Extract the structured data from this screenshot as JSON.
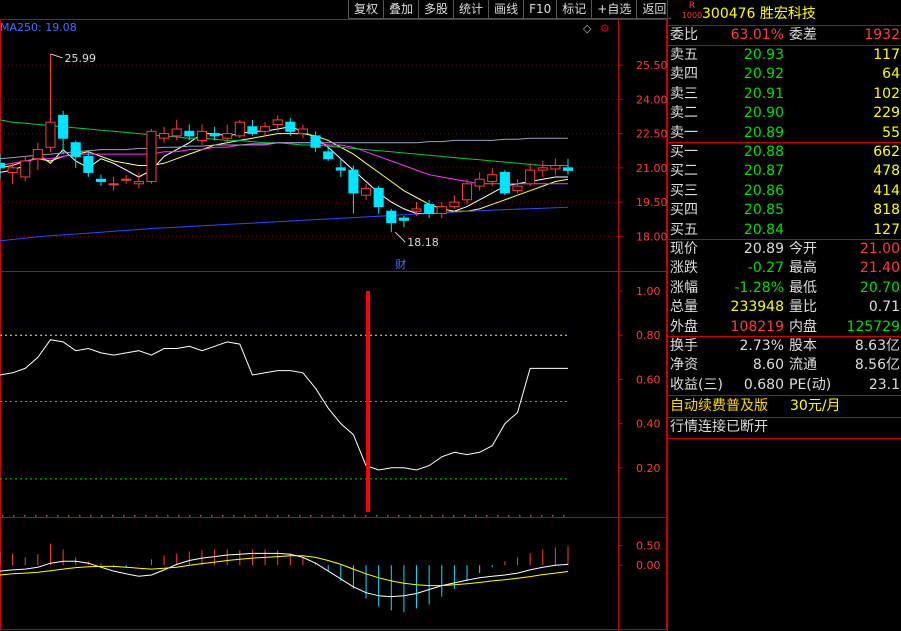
{
  "toolbar": {
    "items": [
      "复权",
      "叠加",
      "多股",
      "统计",
      "画线",
      "F10",
      "标记",
      "+自选",
      "返回"
    ]
  },
  "main_chart": {
    "ma_label": "MA250: 19.08",
    "high_label": "25.99",
    "low_label": "18.18",
    "fin_marker": "财",
    "price_ticks": [
      "25.50",
      "24.00",
      "22.50",
      "21.00",
      "19.50",
      "18.00"
    ]
  },
  "chart_data": [
    {
      "type": "candlestick",
      "ylim": [
        17.4,
        26.6
      ],
      "candles": [
        [
          21.2,
          21.0,
          21.6,
          20.5
        ],
        [
          20.8,
          21.0,
          21.2,
          20.3
        ],
        [
          20.6,
          21.3,
          21.5,
          20.4
        ],
        [
          21.4,
          21.8,
          22.1,
          20.9
        ],
        [
          21.9,
          23.0,
          25.99,
          21.7
        ],
        [
          23.3,
          22.3,
          23.5,
          21.6
        ],
        [
          22.1,
          21.5,
          22.2,
          21.0
        ],
        [
          21.5,
          20.8,
          21.7,
          20.6
        ],
        [
          20.5,
          20.4,
          20.7,
          20.2
        ],
        [
          20.3,
          20.3,
          20.6,
          20.0
        ],
        [
          20.5,
          20.5,
          20.7,
          20.3
        ],
        [
          20.3,
          20.4,
          20.8,
          20.1
        ],
        [
          20.4,
          22.6,
          22.7,
          20.3
        ],
        [
          22.3,
          22.5,
          22.8,
          22.1
        ],
        [
          22.4,
          22.7,
          23.1,
          22.2
        ],
        [
          22.6,
          22.4,
          22.9,
          22.2
        ],
        [
          22.2,
          22.6,
          22.9,
          22.0
        ],
        [
          22.5,
          22.4,
          22.8,
          22.2
        ],
        [
          22.3,
          22.5,
          22.9,
          22.1
        ],
        [
          22.4,
          23.0,
          23.1,
          22.3
        ],
        [
          22.8,
          22.5,
          23.1,
          22.4
        ],
        [
          22.6,
          22.8,
          23.0,
          22.4
        ],
        [
          22.9,
          23.1,
          23.3,
          22.6
        ],
        [
          23.0,
          22.6,
          23.2,
          22.4
        ],
        [
          22.5,
          22.7,
          22.9,
          22.3
        ],
        [
          22.4,
          21.9,
          22.6,
          21.7
        ],
        [
          21.7,
          21.4,
          21.9,
          21.3
        ],
        [
          21.0,
          20.9,
          21.4,
          20.6
        ],
        [
          20.9,
          19.9,
          21.1,
          19.0
        ],
        [
          19.8,
          20.1,
          20.3,
          19.6
        ],
        [
          20.1,
          19.3,
          20.2,
          19.0
        ],
        [
          19.1,
          18.6,
          19.2,
          18.18
        ],
        [
          18.8,
          18.7,
          18.9,
          18.4
        ],
        [
          19.1,
          19.2,
          19.5,
          18.9
        ],
        [
          19.4,
          19.0,
          19.6,
          18.8
        ],
        [
          19.0,
          19.3,
          19.5,
          18.8
        ],
        [
          19.3,
          19.5,
          19.8,
          19.2
        ],
        [
          19.6,
          20.3,
          20.5,
          19.4
        ],
        [
          20.2,
          20.5,
          20.8,
          20.0
        ],
        [
          20.4,
          20.7,
          21.0,
          20.2
        ],
        [
          20.8,
          19.9,
          20.9,
          19.8
        ],
        [
          20.0,
          20.2,
          20.5,
          19.9
        ],
        [
          20.3,
          20.9,
          21.2,
          20.2
        ],
        [
          20.9,
          21.0,
          21.3,
          20.6
        ],
        [
          20.95,
          21.1,
          21.4,
          20.7
        ],
        [
          21.0,
          20.89,
          21.4,
          20.7
        ]
      ],
      "ma_lines": [
        {
          "color": "#ffffff",
          "values": [
            20.8,
            20.9,
            21.1,
            21.6,
            21.2,
            21.8,
            21.3,
            21.0,
            21.4,
            21.2,
            20.9,
            20.6,
            20.9,
            21.5,
            21.8,
            22.1,
            22.5,
            22.5,
            22.4,
            22.5,
            22.6,
            22.6,
            22.7,
            22.8,
            22.6,
            22.3,
            21.9,
            21.4,
            20.9,
            20.4,
            19.9,
            19.5,
            19.2,
            19.0,
            19.0,
            19.0,
            19.1,
            19.3,
            19.6,
            19.9,
            20.2,
            20.3,
            20.4,
            20.5,
            20.6,
            20.6
          ]
        },
        {
          "color": "#ffff66",
          "values": [
            21.0,
            21.1,
            21.3,
            21.4,
            21.3,
            21.5,
            21.6,
            21.7,
            21.5,
            21.3,
            21.2,
            21.1,
            21.1,
            21.2,
            21.4,
            21.6,
            21.8,
            22.0,
            22.1,
            22.2,
            22.3,
            22.4,
            22.5,
            22.5,
            22.5,
            22.4,
            22.2,
            21.9,
            21.6,
            21.2,
            20.8,
            20.4,
            20.0,
            19.7,
            19.4,
            19.2,
            19.1,
            19.1,
            19.2,
            19.4,
            19.6,
            19.8,
            20.0,
            20.2,
            20.4,
            20.5
          ]
        },
        {
          "color": "#ff33ff",
          "values": [
            21.1,
            21.2,
            21.3,
            21.4,
            21.4,
            21.5,
            21.6,
            21.6,
            21.6,
            21.6,
            21.6,
            21.6,
            21.6,
            21.7,
            21.7,
            21.8,
            21.8,
            21.9,
            21.9,
            22.0,
            22.0,
            22.0,
            22.1,
            22.1,
            22.1,
            22.1,
            22.0,
            22.0,
            21.9,
            21.7,
            21.5,
            21.3,
            21.1,
            20.9,
            20.7,
            20.6,
            20.5,
            20.4,
            20.3,
            20.3,
            20.3,
            20.3,
            20.3,
            20.3,
            20.3,
            20.3
          ]
        },
        {
          "color": "#00cc44",
          "values": [
            23.1,
            23.0,
            22.95,
            22.9,
            22.85,
            22.8,
            22.75,
            22.7,
            22.65,
            22.6,
            22.55,
            22.5,
            22.45,
            22.4,
            22.35,
            22.3,
            22.3,
            22.25,
            22.2,
            22.2,
            22.15,
            22.1,
            22.1,
            22.05,
            22.0,
            22.0,
            21.95,
            21.9,
            21.85,
            21.8,
            21.75,
            21.7,
            21.65,
            21.6,
            21.55,
            21.5,
            21.45,
            21.4,
            21.35,
            21.3,
            21.25,
            21.2,
            21.15,
            21.1,
            21.1,
            21.1
          ]
        },
        {
          "color": "#9aa0c0",
          "values": [
            21.4,
            21.45,
            21.5,
            21.55,
            21.6,
            21.65,
            21.7,
            21.75,
            21.8,
            21.8,
            21.8,
            21.85,
            21.85,
            21.9,
            21.9,
            21.95,
            21.95,
            22.0,
            22.0,
            22.0,
            22.05,
            22.05,
            22.1,
            22.1,
            22.1,
            22.1,
            22.1,
            22.1,
            22.1,
            22.1,
            22.1,
            22.1,
            22.1,
            22.1,
            22.15,
            22.15,
            22.2,
            22.2,
            22.2,
            22.2,
            22.25,
            22.25,
            22.3,
            22.3,
            22.3,
            22.3
          ]
        },
        {
          "color": "#3344ff",
          "values": [
            17.8,
            17.86,
            17.92,
            17.98,
            18.02,
            18.06,
            18.1,
            18.14,
            18.18,
            18.22,
            18.26,
            18.3,
            18.34,
            18.37,
            18.4,
            18.43,
            18.46,
            18.49,
            18.52,
            18.55,
            18.58,
            18.61,
            18.64,
            18.67,
            18.7,
            18.73,
            18.76,
            18.79,
            18.82,
            18.85,
            18.88,
            18.91,
            18.94,
            18.97,
            19.0,
            19.03,
            19.06,
            19.09,
            19.12,
            19.15,
            19.17,
            19.19,
            19.21,
            19.23,
            19.25,
            19.27
          ]
        }
      ]
    },
    {
      "type": "line",
      "ylim": [
        0.0,
        1.05
      ],
      "ticks": [
        "1.00",
        "0.80",
        "0.60",
        "0.40",
        "0.20"
      ],
      "ref_lines": [
        0.8,
        0.5,
        0.15
      ],
      "values": [
        0.62,
        0.63,
        0.65,
        0.7,
        0.78,
        0.77,
        0.73,
        0.74,
        0.72,
        0.71,
        0.72,
        0.73,
        0.71,
        0.74,
        0.74,
        0.75,
        0.73,
        0.75,
        0.77,
        0.76,
        0.62,
        0.63,
        0.64,
        0.64,
        0.63,
        0.56,
        0.47,
        0.4,
        0.35,
        0.21,
        0.19,
        0.2,
        0.2,
        0.19,
        0.21,
        0.25,
        0.27,
        0.26,
        0.27,
        0.3,
        0.4,
        0.45,
        0.65,
        0.65,
        0.65,
        0.65
      ],
      "signal_index": 29
    },
    {
      "type": "bar",
      "ylim": [
        -1.6,
        1.05
      ],
      "ticks": [
        "0.50",
        "0.00"
      ],
      "hist": [
        0.35,
        0.3,
        0.2,
        0.28,
        0.55,
        0.4,
        0.2,
        0.1,
        0.05,
        -0.05,
        -0.05,
        0.02,
        0.15,
        0.25,
        0.3,
        0.35,
        0.38,
        0.4,
        0.4,
        0.38,
        0.4,
        0.4,
        0.38,
        0.3,
        0.2,
        0.05,
        -0.15,
        -0.4,
        -0.6,
        -0.85,
        -1.05,
        -1.15,
        -1.2,
        -1.1,
        -1.0,
        -0.8,
        -0.6,
        -0.4,
        -0.2,
        -0.05,
        0.1,
        0.2,
        0.3,
        0.4,
        0.45,
        0.48
      ],
      "dif": [
        -0.15,
        -0.12,
        -0.1,
        -0.05,
        0.05,
        0.1,
        0.1,
        0.05,
        -0.05,
        -0.15,
        -0.22,
        -0.28,
        -0.25,
        -0.12,
        0.02,
        0.12,
        0.18,
        0.22,
        0.26,
        0.28,
        0.3,
        0.3,
        0.3,
        0.28,
        0.2,
        0.05,
        -0.15,
        -0.35,
        -0.55,
        -0.7,
        -0.78,
        -0.8,
        -0.78,
        -0.72,
        -0.62,
        -0.52,
        -0.45,
        -0.38,
        -0.32,
        -0.28,
        -0.25,
        -0.2,
        -0.12,
        -0.05,
        0.0,
        0.02
      ],
      "dea": [
        -0.25,
        -0.22,
        -0.2,
        -0.18,
        -0.14,
        -0.1,
        -0.06,
        -0.04,
        -0.03,
        -0.03,
        -0.05,
        -0.08,
        -0.1,
        -0.08,
        -0.05,
        0.0,
        0.04,
        0.08,
        0.12,
        0.15,
        0.18,
        0.2,
        0.22,
        0.24,
        0.24,
        0.2,
        0.12,
        0.02,
        -0.1,
        -0.22,
        -0.32,
        -0.4,
        -0.46,
        -0.5,
        -0.52,
        -0.52,
        -0.5,
        -0.47,
        -0.44,
        -0.4,
        -0.37,
        -0.33,
        -0.29,
        -0.24,
        -0.2,
        -0.16
      ]
    }
  ],
  "quote": {
    "badge_top": "R",
    "badge_bottom": "1000",
    "code_name": "300476 胜宏科技",
    "wb": {
      "l": "委比",
      "v": "63.01%",
      "l2": "委差",
      "v2": "1932"
    },
    "asks": [
      {
        "l": "卖五",
        "p": "20.93",
        "q": "117"
      },
      {
        "l": "卖四",
        "p": "20.92",
        "q": "64"
      },
      {
        "l": "卖三",
        "p": "20.91",
        "q": "102"
      },
      {
        "l": "卖二",
        "p": "20.90",
        "q": "229"
      },
      {
        "l": "卖一",
        "p": "20.89",
        "q": "55"
      }
    ],
    "bids": [
      {
        "l": "买一",
        "p": "20.88",
        "q": "662"
      },
      {
        "l": "买二",
        "p": "20.87",
        "q": "478"
      },
      {
        "l": "买三",
        "p": "20.86",
        "q": "414"
      },
      {
        "l": "买四",
        "p": "20.85",
        "q": "818"
      },
      {
        "l": "买五",
        "p": "20.84",
        "q": "127"
      }
    ],
    "stats1": [
      {
        "l": "现价",
        "v": "20.89",
        "l2": "今开",
        "v2": "21.00"
      },
      {
        "l": "涨跌",
        "v": "-0.27",
        "l2": "最高",
        "v2": "21.40"
      },
      {
        "l": "涨幅",
        "v": "-1.28%",
        "l2": "最低",
        "v2": "20.70"
      },
      {
        "l": "总量",
        "v": "233948",
        "l2": "量比",
        "v2": "0.71"
      },
      {
        "l": "外盘",
        "v": "108219",
        "l2": "内盘",
        "v2": "125729"
      }
    ],
    "stats2": [
      {
        "l": "换手",
        "v": "2.73%",
        "l2": "股本",
        "v2": "8.63亿"
      },
      {
        "l": "净资",
        "v": "8.60",
        "l2": "流通",
        "v2": "8.56亿"
      },
      {
        "l": "收益(三)",
        "v": "0.680",
        "l2": "PE(动)",
        "v2": "23.1"
      }
    ],
    "promo_text": "自动续费普及版",
    "promo_price": "30元/月",
    "status": "行情连接已断开"
  },
  "colors": {
    "up": "#ff3c3c",
    "down": "#00e5ff",
    "frame": "#cc0000"
  }
}
